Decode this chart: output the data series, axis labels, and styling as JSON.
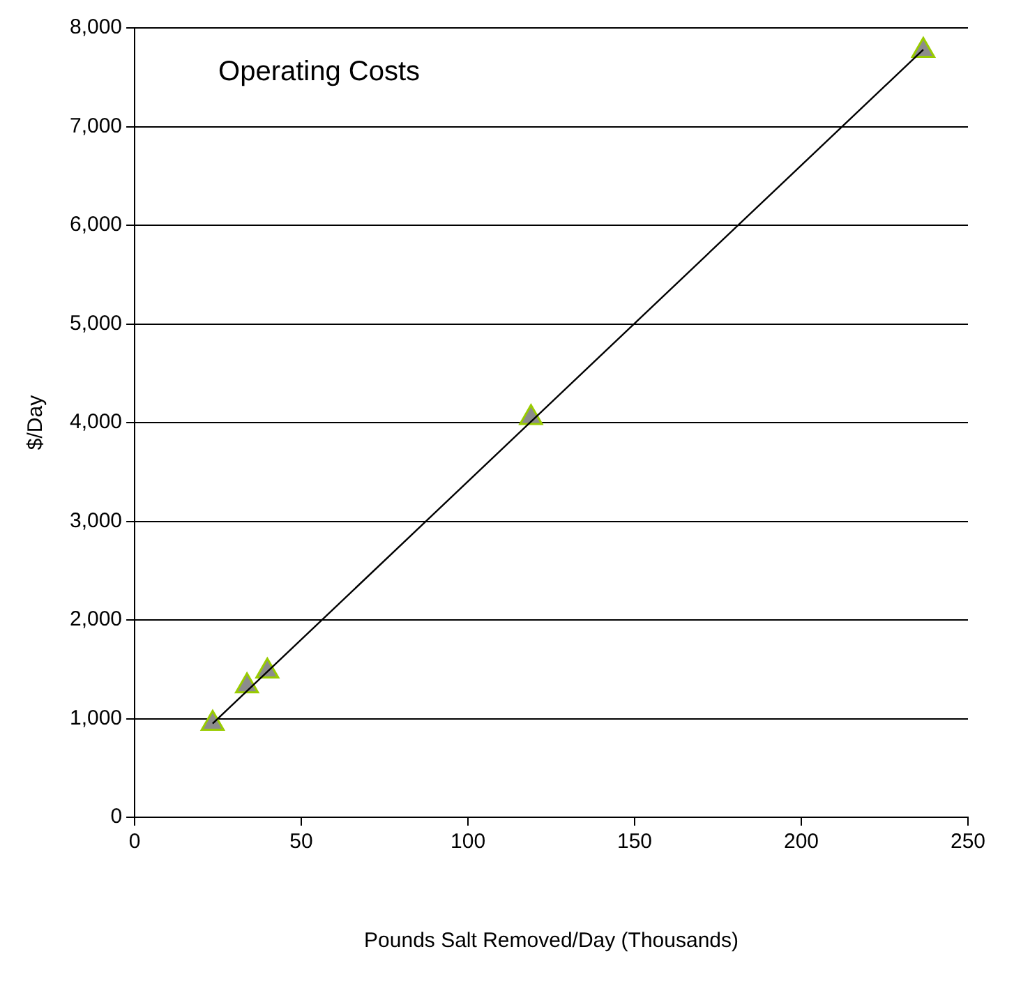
{
  "chart_data": {
    "type": "scatter",
    "xlabel": "Pounds Salt Removed/Day (Thousands)",
    "ylabel": "$/Day",
    "annotations": [
      "Operating Costs"
    ],
    "xlim": [
      0,
      250
    ],
    "xticks": [
      0,
      50,
      100,
      150,
      200,
      250
    ],
    "ylim": [
      0,
      8000
    ],
    "yticks": [
      {
        "value": 0,
        "label": "0"
      },
      {
        "value": 1000,
        "label": "1,000"
      },
      {
        "value": 2000,
        "label": "2,000"
      },
      {
        "value": 3000,
        "label": "3,000"
      },
      {
        "value": 4000,
        "label": "4,000"
      },
      {
        "value": 5000,
        "label": "5,000"
      },
      {
        "value": 6000,
        "label": "6,000"
      },
      {
        "value": 7000,
        "label": "7,000"
      },
      {
        "value": 8000,
        "label": "8,000"
      }
    ],
    "grid": "y",
    "legend": false,
    "series": [
      {
        "type": "line",
        "color": "#000000",
        "marker": "none",
        "x": [
          23.4,
          236.6
        ],
        "values": [
          950,
          7780
        ]
      },
      {
        "type": "scatter",
        "color": "#8c8c8c",
        "marker": "triangle",
        "x": [
          23.4,
          33.7,
          39.8,
          118.9,
          236.6
        ],
        "values": [
          950,
          1330,
          1480,
          4050,
          7770
        ]
      }
    ]
  }
}
